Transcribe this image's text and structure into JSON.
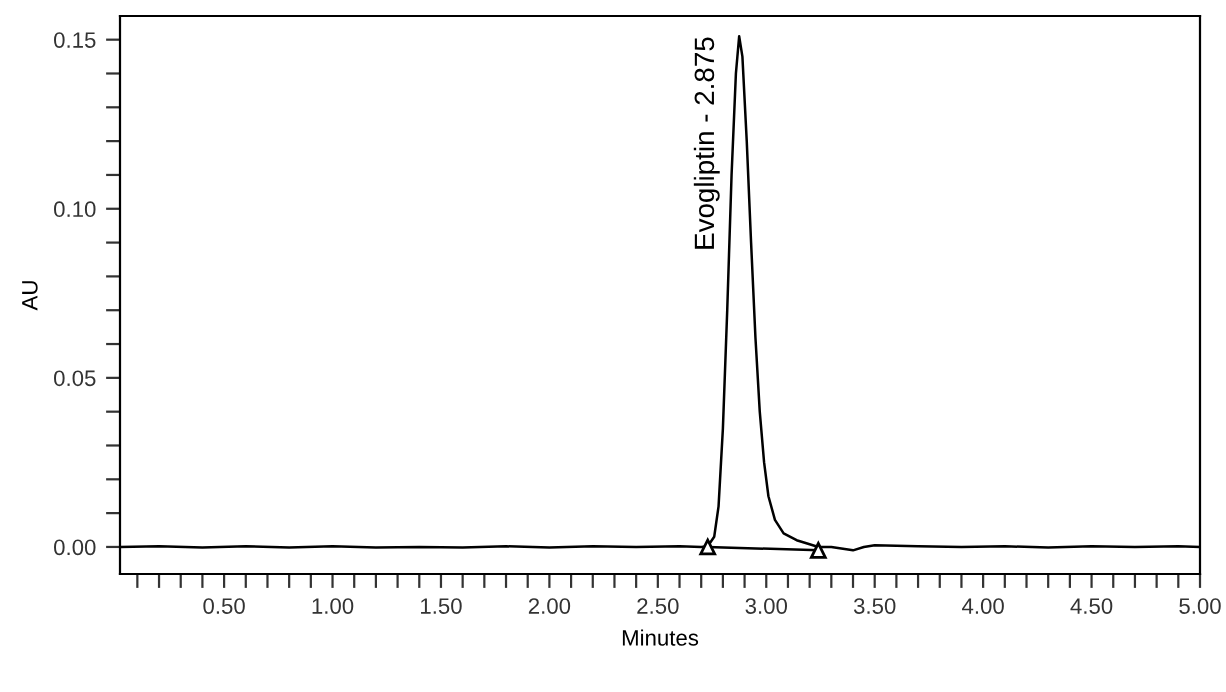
{
  "chart_data": {
    "type": "line",
    "xlabel": "Minutes",
    "ylabel": "AU",
    "xlim": [
      0.02,
      5.0
    ],
    "ylim": [
      -0.008,
      0.157
    ],
    "xticks": [
      {
        "value": 0.1,
        "label": null
      },
      {
        "value": 0.2,
        "label": null
      },
      {
        "value": 0.3,
        "label": null
      },
      {
        "value": 0.4,
        "label": null
      },
      {
        "value": 0.5,
        "label": "0.50"
      },
      {
        "value": 0.6,
        "label": null
      },
      {
        "value": 0.7,
        "label": null
      },
      {
        "value": 0.8,
        "label": null
      },
      {
        "value": 0.9,
        "label": null
      },
      {
        "value": 1.0,
        "label": "1.00"
      },
      {
        "value": 1.1,
        "label": null
      },
      {
        "value": 1.2,
        "label": null
      },
      {
        "value": 1.3,
        "label": null
      },
      {
        "value": 1.4,
        "label": null
      },
      {
        "value": 1.5,
        "label": "1.50"
      },
      {
        "value": 1.6,
        "label": null
      },
      {
        "value": 1.7,
        "label": null
      },
      {
        "value": 1.8,
        "label": null
      },
      {
        "value": 1.9,
        "label": null
      },
      {
        "value": 2.0,
        "label": "2.00"
      },
      {
        "value": 2.1,
        "label": null
      },
      {
        "value": 2.2,
        "label": null
      },
      {
        "value": 2.3,
        "label": null
      },
      {
        "value": 2.4,
        "label": null
      },
      {
        "value": 2.5,
        "label": "2.50"
      },
      {
        "value": 2.6,
        "label": null
      },
      {
        "value": 2.7,
        "label": null
      },
      {
        "value": 2.8,
        "label": null
      },
      {
        "value": 2.9,
        "label": null
      },
      {
        "value": 3.0,
        "label": "3.00"
      },
      {
        "value": 3.1,
        "label": null
      },
      {
        "value": 3.2,
        "label": null
      },
      {
        "value": 3.3,
        "label": null
      },
      {
        "value": 3.4,
        "label": null
      },
      {
        "value": 3.5,
        "label": "3.50"
      },
      {
        "value": 3.6,
        "label": null
      },
      {
        "value": 3.7,
        "label": null
      },
      {
        "value": 3.8,
        "label": null
      },
      {
        "value": 3.9,
        "label": null
      },
      {
        "value": 4.0,
        "label": "4.00"
      },
      {
        "value": 4.1,
        "label": null
      },
      {
        "value": 4.2,
        "label": null
      },
      {
        "value": 4.3,
        "label": null
      },
      {
        "value": 4.4,
        "label": null
      },
      {
        "value": 4.5,
        "label": "4.50"
      },
      {
        "value": 4.6,
        "label": null
      },
      {
        "value": 4.7,
        "label": null
      },
      {
        "value": 4.8,
        "label": null
      },
      {
        "value": 4.9,
        "label": null
      },
      {
        "value": 5.0,
        "label": "5.00"
      }
    ],
    "yticks": [
      {
        "value": 0.0,
        "label": "0.00"
      },
      {
        "value": 0.01,
        "label": null
      },
      {
        "value": 0.02,
        "label": null
      },
      {
        "value": 0.03,
        "label": null
      },
      {
        "value": 0.04,
        "label": null
      },
      {
        "value": 0.05,
        "label": "0.05"
      },
      {
        "value": 0.06,
        "label": null
      },
      {
        "value": 0.07,
        "label": null
      },
      {
        "value": 0.08,
        "label": null
      },
      {
        "value": 0.09,
        "label": null
      },
      {
        "value": 0.1,
        "label": "0.10"
      },
      {
        "value": 0.11,
        "label": null
      },
      {
        "value": 0.12,
        "label": null
      },
      {
        "value": 0.13,
        "label": null
      },
      {
        "value": 0.14,
        "label": null
      },
      {
        "value": 0.15,
        "label": "0.15"
      }
    ],
    "grid": false,
    "legend": false,
    "annotations": [
      {
        "text": "Evogliptin - 2.875",
        "x": 2.875,
        "y": 0.151
      }
    ],
    "series": [
      {
        "color": "#000000",
        "marker": "none",
        "x": [
          0.02,
          0.2,
          0.4,
          0.6,
          0.8,
          1.0,
          1.2,
          1.4,
          1.6,
          1.8,
          2.0,
          2.2,
          2.4,
          2.6,
          2.7,
          2.73,
          2.76,
          2.78,
          2.8,
          2.82,
          2.84,
          2.86,
          2.875,
          2.89,
          2.91,
          2.93,
          2.95,
          2.97,
          2.99,
          3.01,
          3.04,
          3.08,
          3.14,
          3.2,
          3.24,
          3.3,
          3.4,
          3.45,
          3.5,
          3.7,
          3.9,
          4.1,
          4.3,
          4.5,
          4.7,
          4.9,
          5.0
        ],
        "values": [
          0.0,
          0.0002,
          -0.0002,
          0.0002,
          -0.0002,
          0.0002,
          -0.0002,
          0.0,
          -0.0002,
          0.0002,
          -0.0002,
          0.0002,
          0.0,
          0.0002,
          0.0,
          0.0002,
          0.003,
          0.012,
          0.035,
          0.07,
          0.11,
          0.14,
          0.151,
          0.145,
          0.12,
          0.09,
          0.062,
          0.04,
          0.025,
          0.015,
          0.008,
          0.004,
          0.002,
          0.0008,
          0.0,
          0.0,
          -0.001,
          0.0,
          0.0005,
          0.0002,
          0.0,
          0.0002,
          -0.0002,
          0.0002,
          0.0,
          0.0002,
          0.0
        ]
      },
      {
        "color": "#000000",
        "marker": "triangle",
        "x": [
          2.73,
          3.24
        ],
        "values": [
          0.0,
          -0.001
        ]
      }
    ]
  }
}
